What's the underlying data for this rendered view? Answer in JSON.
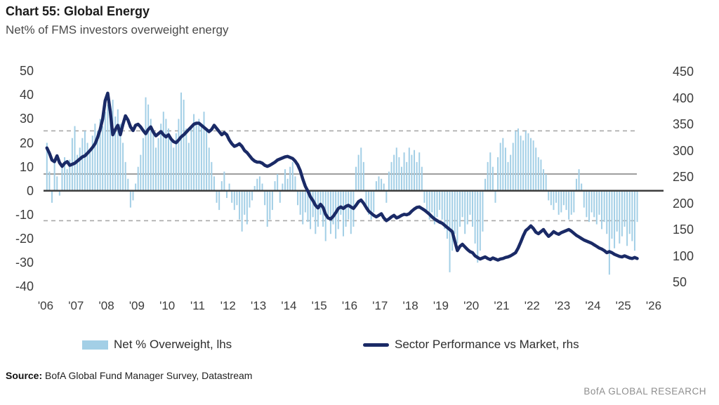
{
  "header": {
    "title": "Chart 55: Global Energy",
    "subtitle": "Net% of FMS investors overweight energy"
  },
  "legend": [
    {
      "label": "Net % Overweight, lhs",
      "swatch": "bar",
      "color": "#a3cfe6"
    },
    {
      "label": "Sector Performance vs Market, rhs",
      "swatch": "line",
      "color": "#1a2a66"
    }
  ],
  "footer": {
    "source_label": "Source:",
    "source_text": " BofA Global Fund Manager Survey, Datastream",
    "brand": "BofA GLOBAL RESEARCH"
  },
  "colors": {
    "bar": "#a3cfe6",
    "line": "#1a2a66",
    "zero_line": "#3d3d3d",
    "mean_line": "#9b9b9b",
    "dashed_line": "#a9a9a9",
    "tick_text": "#3c3c3c"
  },
  "chart_data": {
    "type": "bar+line",
    "title": "Chart 55: Global Energy",
    "subtitle": "Net% of FMS investors overweight energy",
    "x_start_year": 2006,
    "points_per_year": 12,
    "x_tick_labels": [
      "'06",
      "'07",
      "'08",
      "'09",
      "'10",
      "'11",
      "'12",
      "'13",
      "'14",
      "'15",
      "'16",
      "'17",
      "'18",
      "'19",
      "'20",
      "'21",
      "'22",
      "'23",
      "'24",
      "'25",
      "'26"
    ],
    "left_axis": {
      "ticks": [
        50,
        40,
        30,
        20,
        10,
        0,
        -10,
        -20,
        -30,
        -40
      ],
      "range": [
        -40,
        50
      ]
    },
    "right_axis": {
      "ticks": [
        450,
        400,
        350,
        300,
        250,
        200,
        150,
        100,
        50
      ],
      "range": [
        50,
        450
      ]
    },
    "reference_lines_lhs": {
      "dashed": [
        25,
        -12.5
      ],
      "solid_mean": 7,
      "zero": 0
    },
    "grid": "off",
    "legend_position": "bottom",
    "series": [
      {
        "name": "Net % Overweight, lhs",
        "type": "bar",
        "axis": "left",
        "color": "#a3cfe6",
        "monthly_values": [
          20,
          8,
          -5,
          12,
          6,
          -2,
          10,
          14,
          9,
          13,
          22,
          27,
          15,
          18,
          22,
          25,
          20,
          16,
          23,
          28,
          25,
          30,
          27,
          33,
          36,
          33,
          38,
          31,
          34,
          28,
          20,
          12,
          5,
          -7,
          -4,
          3,
          10,
          15,
          22,
          39,
          36,
          30,
          24,
          18,
          22,
          28,
          33,
          30,
          26,
          22,
          18,
          24,
          30,
          41,
          38,
          26,
          20,
          27,
          32,
          28,
          30,
          28,
          33,
          25,
          18,
          12,
          6,
          -5,
          -8,
          4,
          8,
          -3,
          3,
          -5,
          -8,
          -6,
          -12,
          -17,
          -10,
          -14,
          -7,
          -4,
          2,
          5,
          6,
          3,
          -6,
          -15,
          -12,
          -8,
          4,
          7,
          -5,
          3,
          9,
          5,
          10,
          12,
          6,
          -6,
          -10,
          -14,
          -9,
          -13,
          -16,
          -11,
          -18,
          -15,
          -10,
          -15,
          -21,
          -12,
          -18,
          -14,
          -20,
          -16,
          -10,
          -19,
          -15,
          -12,
          -18,
          -15,
          10,
          15,
          18,
          12,
          -8,
          -10,
          -12,
          -9,
          4,
          6,
          5,
          3,
          -5,
          8,
          12,
          15,
          18,
          14,
          10,
          16,
          12,
          18,
          15,
          17,
          12,
          16,
          10,
          -5,
          -8,
          -12,
          -9,
          -14,
          -11,
          -8,
          -12,
          -16,
          -20,
          -34,
          -25,
          -18,
          -22,
          -15,
          -11,
          -18,
          -14,
          -10,
          -15,
          -22,
          -30,
          -25,
          -17,
          5,
          12,
          16,
          10,
          -5,
          14,
          20,
          22,
          18,
          12,
          15,
          20,
          25,
          26,
          23,
          21,
          25,
          24,
          22,
          21,
          18,
          14,
          13,
          9,
          7,
          -4,
          -6,
          -8,
          -5,
          -10,
          -9,
          -6,
          -8,
          -12,
          -10,
          -9,
          5,
          9,
          3,
          -7,
          -11,
          -13,
          -9,
          -11,
          -14,
          -10,
          -16,
          -13,
          -18,
          -35,
          -20,
          -24,
          -17,
          -22,
          -19,
          -15,
          -23,
          -18,
          -21,
          -25,
          -13
        ]
      },
      {
        "name": "Sector Performance vs Market, rhs",
        "type": "line",
        "axis": "right",
        "color": "#1a2a66",
        "monthly_values": [
          305,
          295,
          282,
          279,
          290,
          277,
          270,
          276,
          279,
          272,
          274,
          276,
          280,
          284,
          288,
          290,
          295,
          300,
          306,
          313,
          325,
          340,
          360,
          395,
          409,
          375,
          330,
          340,
          348,
          330,
          350,
          366,
          358,
          345,
          338,
          348,
          350,
          345,
          338,
          332,
          340,
          345,
          335,
          328,
          332,
          336,
          330,
          326,
          330,
          322,
          317,
          315,
          320,
          326,
          330,
          335,
          340,
          345,
          350,
          352,
          352,
          348,
          344,
          340,
          336,
          340,
          348,
          342,
          336,
          330,
          334,
          330,
          320,
          313,
          308,
          310,
          313,
          308,
          300,
          296,
          290,
          284,
          280,
          278,
          278,
          276,
          272,
          270,
          272,
          275,
          278,
          282,
          284,
          286,
          288,
          289,
          287,
          285,
          280,
          273,
          262,
          246,
          232,
          223,
          212,
          205,
          196,
          191,
          198,
          192,
          179,
          172,
          170,
          175,
          182,
          190,
          193,
          190,
          194,
          196,
          193,
          190,
          196,
          203,
          206,
          200,
          192,
          185,
          181,
          177,
          174,
          177,
          180,
          172,
          167,
          170,
          174,
          177,
          172,
          174,
          177,
          179,
          178,
          180,
          185,
          189,
          192,
          193,
          190,
          187,
          183,
          179,
          174,
          170,
          167,
          164,
          162,
          158,
          154,
          150,
          146,
          128,
          110,
          118,
          122,
          117,
          112,
          108,
          106,
          100,
          97,
          94,
          96,
          98,
          95,
          93,
          96,
          94,
          92,
          94,
          95,
          97,
          98,
          100,
          103,
          106,
          115,
          126,
          138,
          148,
          152,
          157,
          152,
          145,
          142,
          146,
          150,
          143,
          137,
          141,
          146,
          143,
          141,
          144,
          146,
          148,
          150,
          147,
          143,
          139,
          136,
          133,
          130,
          128,
          126,
          124,
          121,
          118,
          115,
          113,
          110,
          106,
          108,
          106,
          103,
          101,
          99,
          98,
          100,
          98,
          96,
          95,
          97,
          95
        ]
      }
    ]
  }
}
